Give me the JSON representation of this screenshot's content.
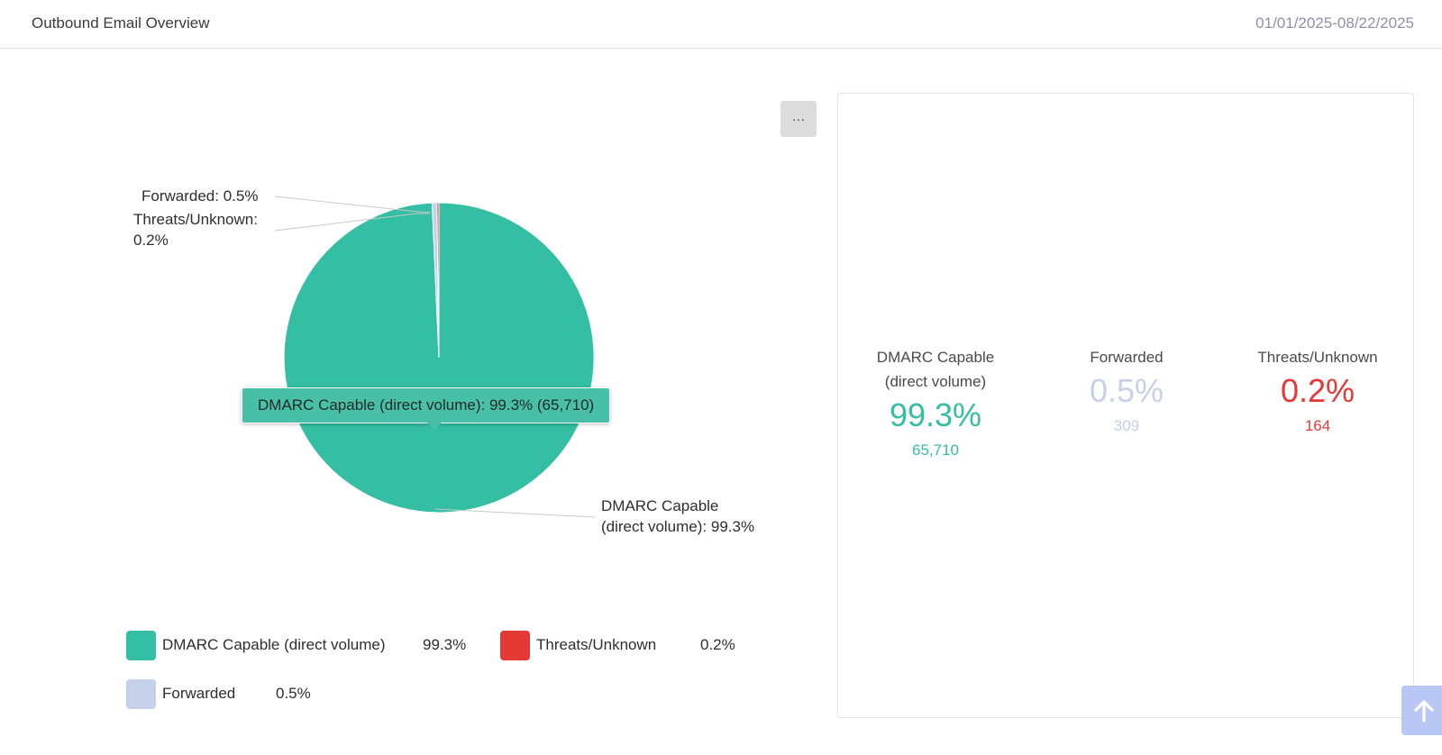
{
  "header": {
    "title": "Outbound Email Overview",
    "date_range": "01/01/2025-08/22/2025"
  },
  "more_button_label": "···",
  "colors": {
    "dmarc": "#34be a3",
    "forwarded": "#c5d1e8",
    "threats": "#e53935"
  },
  "chart_data": {
    "type": "pie",
    "slices": [
      {
        "name": "DMARC Capable (direct volume)",
        "percent": 99.3,
        "count": 65710,
        "color": "#34bea3"
      },
      {
        "name": "Forwarded",
        "percent": 0.5,
        "count": 309,
        "color": "#c5d1e8"
      },
      {
        "name": "Threats/Unknown",
        "percent": 0.2,
        "count": 164,
        "color": "#e53935"
      }
    ]
  },
  "pie_labels": {
    "forwarded": "Forwarded: 0.5%",
    "threats_line1": "Threats/Unknown:",
    "threats_line2": "0.2%",
    "dmarc_line1": "DMARC Capable",
    "dmarc_line2": "(direct volume): 99.3%"
  },
  "tooltip": "DMARC Capable (direct volume): 99.3% (65,710)",
  "legend": [
    {
      "label": "DMARC Capable (direct volume)",
      "value": "99.3%"
    },
    {
      "label": "Threats/Unknown",
      "value": "0.2%"
    },
    {
      "label": "Forwarded",
      "value": "0.5%"
    }
  ],
  "stats": {
    "dmarc": {
      "label_line1": "DMARC Capable",
      "label_line2": "(direct volume)",
      "percent": "99.3%",
      "count": "65,710",
      "color": "#34bea3"
    },
    "forwarded": {
      "label": "Forwarded",
      "percent": "0.5%",
      "count": "309",
      "color": "#c5d1e8"
    },
    "threats": {
      "label": "Threats/Unknown",
      "percent": "0.2%",
      "count": "164",
      "color": "#e53935"
    }
  }
}
